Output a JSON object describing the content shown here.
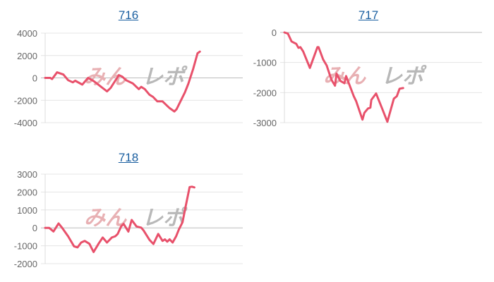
{
  "watermark": {
    "text_red": "みん",
    "text_gray": "レポ",
    "colors": {
      "red": "#e8b0b3",
      "gray": "#b8b8b8"
    }
  },
  "chart_data": [
    {
      "type": "line",
      "title": "716",
      "ylim": [
        -4000,
        4000
      ],
      "yticks": [
        4000,
        2000,
        0,
        -2000,
        -4000
      ],
      "yticklabels": [
        "4000",
        "2000",
        "0",
        "-2000",
        "-4000"
      ],
      "xlim": [
        0,
        100
      ],
      "grid": true,
      "color": "#e8516b",
      "x": [
        0,
        2.6,
        3.5,
        6,
        9.2,
        11.6,
        14,
        15.2,
        18.8,
        21.7,
        24.7,
        31.3,
        33.1,
        37.3,
        39.1,
        40.9,
        44.4,
        47.4,
        48.6,
        50.4,
        52.8,
        54.6,
        56.8,
        59.4,
        63,
        65.4,
        66.5,
        70.7,
        72.5,
        74.9,
        77.1,
        78.3
      ],
      "y": [
        0,
        0,
        -100,
        500,
        300,
        -200,
        -400,
        -250,
        -600,
        0,
        -300,
        -1200,
        -900,
        250,
        100,
        -200,
        -500,
        -1000,
        -800,
        -1000,
        -1500,
        -1700,
        -2100,
        -2100,
        -2700,
        -3000,
        -2800,
        -1300,
        -500,
        800,
        2200,
        2350
      ]
    },
    {
      "type": "line",
      "title": "717",
      "ylim": [
        -3000,
        0
      ],
      "yticks": [
        0,
        -1000,
        -2000,
        -3000
      ],
      "yticklabels": [
        "0",
        "-1000",
        "-2000",
        "-3000"
      ],
      "xlim": [
        0,
        100
      ],
      "grid": true,
      "color": "#e8516b",
      "x": [
        0,
        1.8,
        3.6,
        6,
        7.1,
        8.1,
        9.5,
        12.9,
        16.7,
        17.3,
        19.6,
        21.4,
        23.8,
        25.6,
        26.4,
        28.3,
        30.4,
        31.2,
        35.1,
        36.3,
        39.5,
        40.5,
        42.3,
        43.5,
        44,
        46.4,
        49.4,
        52.1,
        55.4,
        56.9,
        58.3,
        60.1
      ],
      "y": [
        0,
        -40,
        -300,
        -380,
        -510,
        -490,
        -630,
        -1180,
        -490,
        -490,
        -900,
        -1100,
        -1570,
        -1770,
        -1370,
        -1610,
        -1690,
        -1450,
        -2120,
        -2280,
        -2900,
        -2670,
        -2530,
        -2500,
        -2240,
        -2030,
        -2520,
        -2970,
        -2200,
        -2120,
        -1870,
        -1850
      ]
    },
    {
      "type": "line",
      "title": "718",
      "ylim": [
        -2000,
        3000
      ],
      "yticks": [
        3000,
        2000,
        1000,
        0,
        -1000,
        -2000
      ],
      "yticklabels": [
        "3000",
        "2000",
        "1000",
        "0",
        "-1000",
        "-2000"
      ],
      "xlim": [
        0,
        100
      ],
      "grid": true,
      "color": "#e8516b",
      "x": [
        0,
        2,
        4.2,
        6.8,
        8.6,
        11.6,
        14.6,
        16.4,
        18.2,
        20,
        22.4,
        24.5,
        27.1,
        29.1,
        31.3,
        33.7,
        35.5,
        36.7,
        38.5,
        39.7,
        42.1,
        43.8,
        46.2,
        48.6,
        49.8,
        52.8,
        54.8,
        57.2,
        59.4,
        60.6,
        61.8,
        63,
        64.5,
        66.3,
        67.7,
        69.5,
        71.3,
        73.1,
        74.3,
        75.5
      ],
      "y": [
        0,
        0,
        -200,
        250,
        0,
        -470,
        -1030,
        -1090,
        -820,
        -730,
        -890,
        -1350,
        -870,
        -540,
        -820,
        -540,
        -470,
        -340,
        90,
        220,
        -210,
        440,
        80,
        10,
        -140,
        -670,
        -900,
        -340,
        -730,
        -640,
        -770,
        -640,
        -820,
        -470,
        -80,
        310,
        1300,
        2280,
        2300,
        2260
      ]
    }
  ]
}
